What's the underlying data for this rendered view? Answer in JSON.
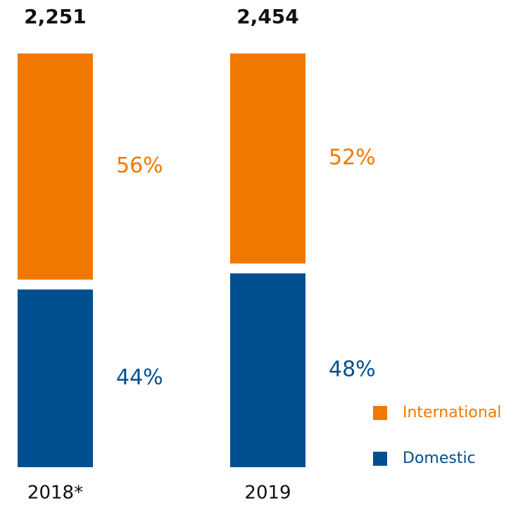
{
  "chart_data": {
    "type": "stacked_bar_100",
    "categories": [
      "2018*",
      "2019"
    ],
    "totals": [
      2251,
      2454
    ],
    "total_labels": [
      "2,251",
      "2,454"
    ],
    "series": [
      {
        "name": "Domestic",
        "color": "#004f91",
        "values": [
          44,
          48
        ],
        "value_labels": [
          "44%",
          "48%"
        ]
      },
      {
        "name": "International",
        "color": "#f07800",
        "values": [
          56,
          52
        ],
        "value_labels": [
          "56%",
          "52%"
        ]
      }
    ]
  }
}
